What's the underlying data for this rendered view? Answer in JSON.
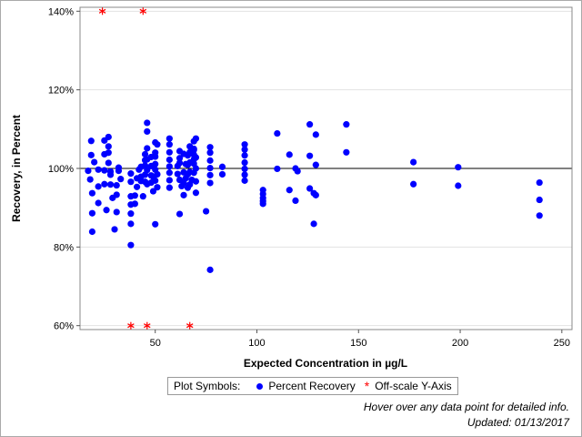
{
  "chart_data": {
    "type": "scatter",
    "xlabel": "Expected Concentration in µg/L",
    "ylabel": "Recovery, in Percent",
    "xlim": [
      13,
      255
    ],
    "ylim": [
      59,
      141
    ],
    "x_ticks": [
      {
        "value": 50,
        "label": "50"
      },
      {
        "value": 100,
        "label": "100"
      },
      {
        "value": 150,
        "label": "150"
      },
      {
        "value": 200,
        "label": "200"
      },
      {
        "value": 250,
        "label": "250"
      }
    ],
    "y_ticks": [
      {
        "value": 60,
        "label": "60%"
      },
      {
        "value": 80,
        "label": "80%"
      },
      {
        "value": 100,
        "label": "100%"
      },
      {
        "value": 120,
        "label": "120%"
      },
      {
        "value": 140,
        "label": "140%"
      }
    ],
    "gridlines": "horizontal",
    "reference_line_y": 100,
    "series": [
      {
        "name": "Percent Recovery",
        "color": "#0000ff",
        "marker": "circle",
        "points": [
          [
            17,
            99.4
          ],
          [
            18,
            97.2
          ],
          [
            18.5,
            103.4
          ],
          [
            18.5,
            107
          ],
          [
            19,
            93.7
          ],
          [
            19,
            88.6
          ],
          [
            19,
            83.9
          ],
          [
            20,
            101.6
          ],
          [
            22,
            91.2
          ],
          [
            22,
            95.4
          ],
          [
            22,
            99.7
          ],
          [
            25,
            96
          ],
          [
            25,
            99.5
          ],
          [
            25,
            103.6
          ],
          [
            25,
            107.1
          ],
          [
            26,
            89.4
          ],
          [
            27,
            101.4
          ],
          [
            27,
            104
          ],
          [
            27,
            105.6
          ],
          [
            27,
            108
          ],
          [
            28,
            99.2
          ],
          [
            28,
            98.4
          ],
          [
            28,
            95.9
          ],
          [
            29,
            92.5
          ],
          [
            30,
            84.5
          ],
          [
            31,
            88.9
          ],
          [
            31,
            93.3
          ],
          [
            31,
            95.7
          ],
          [
            32,
            99.4
          ],
          [
            32,
            100.2
          ],
          [
            33,
            97.3
          ],
          [
            38,
            80.5
          ],
          [
            38,
            85.9
          ],
          [
            38,
            88.5
          ],
          [
            38,
            90.8
          ],
          [
            38,
            92.9
          ],
          [
            38,
            96.6
          ],
          [
            38,
            98.7
          ],
          [
            40,
            91
          ],
          [
            40,
            93.1
          ],
          [
            41,
            95.3
          ],
          [
            41,
            97.5
          ],
          [
            42,
            99.7
          ],
          [
            43,
            96.8
          ],
          [
            43,
            97.9
          ],
          [
            43,
            100.4
          ],
          [
            44,
            92.9
          ],
          [
            45,
            96.6
          ],
          [
            45,
            98.4
          ],
          [
            45,
            100.7
          ],
          [
            45,
            102.1
          ],
          [
            45,
            103.6
          ],
          [
            46,
            96
          ],
          [
            46,
            99.6
          ],
          [
            46,
            102.3
          ],
          [
            46,
            105.1
          ],
          [
            46,
            109.4
          ],
          [
            46,
            111.6
          ],
          [
            48,
            96.4
          ],
          [
            48,
            98.2
          ],
          [
            48,
            100.6
          ],
          [
            48,
            102.9
          ],
          [
            49,
            94.2
          ],
          [
            49,
            97.9
          ],
          [
            50,
            85.8
          ],
          [
            50,
            96.9
          ],
          [
            50,
            99.7
          ],
          [
            50,
            101.1
          ],
          [
            50,
            103
          ],
          [
            50,
            104
          ],
          [
            50,
            106.6
          ],
          [
            51,
            95.2
          ],
          [
            51,
            98.5
          ],
          [
            51,
            106.1
          ],
          [
            57,
            95.1
          ],
          [
            57,
            97
          ],
          [
            57,
            98.9
          ],
          [
            57,
            100.5
          ],
          [
            57,
            102.2
          ],
          [
            57,
            104.1
          ],
          [
            57,
            106.1
          ],
          [
            57,
            107.6
          ],
          [
            61,
            98.6
          ],
          [
            61,
            100.6
          ],
          [
            62,
            97.1
          ],
          [
            62,
            88.4
          ],
          [
            62,
            101.4
          ],
          [
            62,
            102.6
          ],
          [
            62,
            104.4
          ],
          [
            63,
            95.5
          ],
          [
            64,
            96.3
          ],
          [
            64,
            99
          ],
          [
            64,
            93.2
          ],
          [
            64,
            103.7
          ],
          [
            65,
            97.5
          ],
          [
            65,
            101.1
          ],
          [
            66,
            95.1
          ],
          [
            66,
            98.5
          ],
          [
            66,
            100.9
          ],
          [
            66,
            103.3
          ],
          [
            67,
            95.9
          ],
          [
            67,
            99.1
          ],
          [
            67,
            101.5
          ],
          [
            67,
            104.1
          ],
          [
            67,
            105.6
          ],
          [
            68,
            97.1
          ],
          [
            69,
            102.3
          ],
          [
            69,
            104.7
          ],
          [
            69,
            98.9
          ],
          [
            69,
            101.2
          ],
          [
            69,
            103.5
          ],
          [
            69,
            105
          ],
          [
            69,
            106.9
          ],
          [
            70,
            93.8
          ],
          [
            70,
            96.7
          ],
          [
            70,
            100
          ],
          [
            70,
            102.8
          ],
          [
            70,
            107.6
          ],
          [
            75,
            89.1
          ],
          [
            77,
            74.2
          ],
          [
            77,
            96.3
          ],
          [
            77,
            98.3
          ],
          [
            77,
            100.1
          ],
          [
            77,
            102
          ],
          [
            77,
            104
          ],
          [
            77,
            105.4
          ],
          [
            83,
            98.5
          ],
          [
            83,
            100.4
          ],
          [
            94,
            96.9
          ],
          [
            94,
            98.4
          ],
          [
            94,
            99.9
          ],
          [
            94,
            101.5
          ],
          [
            94,
            103.3
          ],
          [
            94,
            104.8
          ],
          [
            94,
            106.1
          ],
          [
            103,
            91
          ],
          [
            103,
            91.7
          ],
          [
            103,
            92.5
          ],
          [
            103,
            93.5
          ],
          [
            103,
            94.5
          ],
          [
            110,
            99.9
          ],
          [
            110,
            108.9
          ],
          [
            116,
            94.5
          ],
          [
            116,
            103.5
          ],
          [
            119,
            100
          ],
          [
            119,
            91.8
          ],
          [
            120,
            99.3
          ],
          [
            126,
            103.2
          ],
          [
            126,
            94.9
          ],
          [
            126,
            111.2
          ],
          [
            128,
            93.7
          ],
          [
            128,
            85.9
          ],
          [
            129,
            93.2
          ],
          [
            129,
            100.9
          ],
          [
            129,
            108.6
          ],
          [
            144,
            111.2
          ],
          [
            144,
            104.1
          ],
          [
            177,
            101.6
          ],
          [
            177,
            96
          ],
          [
            199,
            100.3
          ],
          [
            199,
            95.6
          ],
          [
            239,
            96.4
          ],
          [
            239,
            92
          ],
          [
            239,
            88
          ]
        ]
      },
      {
        "name": "Off-scale Y-Axis",
        "color": "#ff0000",
        "marker": "star",
        "points": [
          [
            24,
            140
          ],
          [
            44,
            140
          ],
          [
            38,
            60
          ],
          [
            46,
            60
          ],
          [
            67,
            60
          ]
        ]
      }
    ]
  },
  "legend": {
    "title": "Plot Symbols:",
    "items": [
      {
        "label": "Percent Recovery",
        "color": "#0000ff"
      },
      {
        "label": "Off-scale Y-Axis",
        "color": "#ff0000"
      }
    ]
  },
  "footnotes": {
    "hover": "Hover over any data point for detailed info.",
    "updated": "Updated: 01/13/2017"
  }
}
